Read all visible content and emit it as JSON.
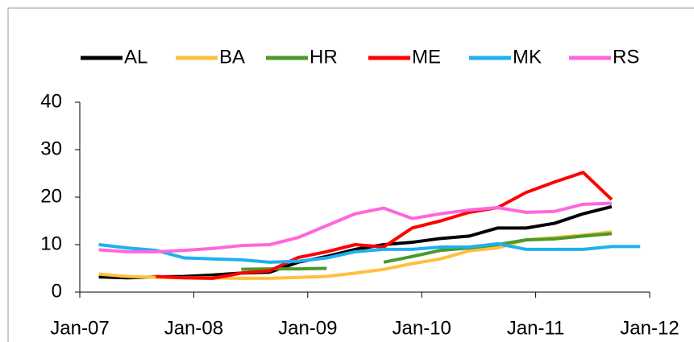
{
  "chart_data": {
    "type": "line",
    "x": [
      "2007-03",
      "2007-06",
      "2007-09",
      "2007-12",
      "2008-03",
      "2008-06",
      "2008-09",
      "2008-12",
      "2009-03",
      "2009-06",
      "2009-09",
      "2009-12",
      "2010-03",
      "2010-06",
      "2010-09",
      "2010-12",
      "2011-03",
      "2011-06",
      "2011-09",
      "2011-12"
    ],
    "series": [
      {
        "name": "AL",
        "color": "#000000",
        "values": [
          3.2,
          3.0,
          3.2,
          3.3,
          3.6,
          4.0,
          4.2,
          6.3,
          7.5,
          9.0,
          10.0,
          10.5,
          11.3,
          11.8,
          13.5,
          13.5,
          14.5,
          16.5,
          18.0,
          null
        ]
      },
      {
        "name": "BA",
        "color": "#ffc040",
        "values": [
          3.8,
          3.3,
          3.1,
          3.0,
          3.0,
          2.9,
          2.9,
          3.1,
          3.3,
          4.0,
          4.8,
          6.0,
          7.0,
          8.7,
          9.3,
          11.0,
          11.5,
          12.0,
          12.7,
          null
        ]
      },
      {
        "name": "HR",
        "color": "#4a9a2a",
        "values": [
          null,
          null,
          null,
          null,
          null,
          4.8,
          4.9,
          4.9,
          5.0,
          null,
          6.3,
          7.5,
          8.8,
          9.3,
          10.0,
          11.0,
          11.2,
          11.8,
          12.3,
          null
        ]
      },
      {
        "name": "ME",
        "color": "#ff0000",
        "values": [
          null,
          null,
          3.3,
          3.0,
          2.9,
          4.0,
          4.5,
          7.3,
          8.5,
          10.0,
          9.5,
          13.5,
          15.0,
          16.8,
          17.8,
          21.0,
          23.2,
          25.2,
          19.5,
          null
        ]
      },
      {
        "name": "MK",
        "color": "#20b0f0",
        "values": [
          10.0,
          9.3,
          8.8,
          7.2,
          7.0,
          6.8,
          6.3,
          6.5,
          7.2,
          8.5,
          9.0,
          9.0,
          9.5,
          9.5,
          10.2,
          9.0,
          9.0,
          9.0,
          9.6,
          9.6
        ]
      },
      {
        "name": "RS",
        "color": "#ff66dd",
        "values": [
          8.9,
          8.5,
          8.5,
          8.8,
          9.2,
          9.8,
          10.0,
          11.5,
          14.0,
          16.5,
          17.7,
          15.5,
          16.5,
          17.3,
          17.8,
          16.8,
          17.0,
          18.5,
          18.7,
          null
        ]
      }
    ],
    "xlim": [
      "2007-01",
      "2012-01"
    ],
    "xticks": [
      {
        "value": "2007-01",
        "label": "Jan-07"
      },
      {
        "value": "2008-01",
        "label": "Jan-08"
      },
      {
        "value": "2009-01",
        "label": "Jan-09"
      },
      {
        "value": "2010-01",
        "label": "Jan-10"
      },
      {
        "value": "2011-01",
        "label": "Jan-11"
      },
      {
        "value": "2012-01",
        "label": "Jan-12"
      }
    ],
    "ylim": [
      0,
      40
    ],
    "yticks": [
      0,
      10,
      20,
      30,
      40
    ],
    "legend": "top",
    "grid": false
  }
}
